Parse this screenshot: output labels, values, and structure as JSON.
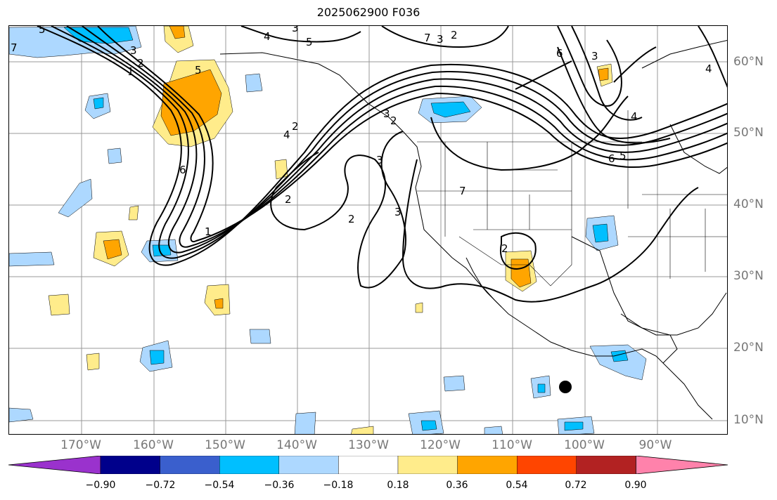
{
  "title": "2025062900 F036",
  "map": {
    "lon_labels": [
      "170°W",
      "160°W",
      "150°W",
      "140°W",
      "130°W",
      "120°W",
      "110°W",
      "100°W",
      "90°W"
    ],
    "lat_labels": [
      "60°N",
      "50°N",
      "40°N",
      "30°N",
      "20°N",
      "10°N"
    ],
    "contour_labels": [
      "5",
      "3",
      "4",
      "3",
      "5",
      "3",
      "2",
      "7",
      "6",
      "3",
      "4",
      "6",
      "5",
      "4",
      "7",
      "6",
      "2",
      "4",
      "3",
      "2",
      "1",
      "3",
      "2",
      "2",
      "3",
      "2",
      "7",
      "1",
      "2",
      "5"
    ],
    "hurricane_marker": "storm-center"
  },
  "colorbar": {
    "colors": [
      "#9a32cd",
      "#00008b",
      "#3a5fcd",
      "#00bfff",
      "#add8ff",
      "#ffffff",
      "#ffec8b",
      "#ffa500",
      "#ff4500",
      "#b22222",
      "#ff82ab"
    ],
    "ticks": [
      "−0.90",
      "−0.72",
      "−0.54",
      "−0.36",
      "−0.18",
      "0.18",
      "0.36",
      "0.54",
      "0.72",
      "0.90"
    ]
  }
}
